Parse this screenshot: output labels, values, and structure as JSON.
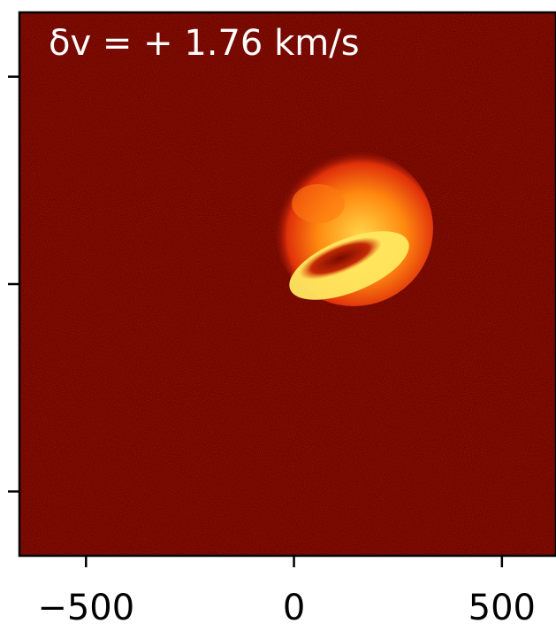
{
  "chart_data": {
    "type": "image",
    "annotation": "δv = + 1.76 km/s",
    "xlim": [
      -660,
      630
    ],
    "xticks": [
      {
        "value": -500,
        "label": "−500"
      },
      0,
      500
    ],
    "ylim": [
      -655,
      655
    ],
    "yticks": [
      -500,
      0,
      500
    ],
    "background_color": "#8a0c02"
  }
}
